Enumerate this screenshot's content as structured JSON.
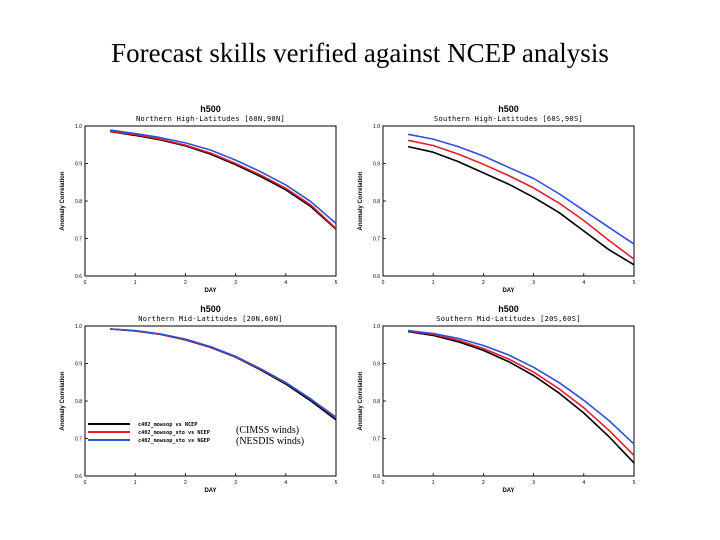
{
  "slide": {
    "title": "Forecast skills verified against NCEP analysis",
    "annotations": [
      "(CIMSS winds)",
      "(NESDIS winds)"
    ]
  },
  "colors": {
    "black": "#000000",
    "red": "#e0202a",
    "blue": "#3050d8"
  },
  "chart_data": [
    {
      "type": "line",
      "title": "h500",
      "subtitle": "Northern High-Latitudes [60N,90N]",
      "xlabel": "DAY",
      "ylabel": "Anomaly Correlation",
      "xlim": [
        0,
        5
      ],
      "ylim": [
        0.6,
        1.0
      ],
      "xticks": [
        0,
        1,
        2,
        3,
        4,
        5
      ],
      "yticks": [
        0.6,
        0.7,
        0.8,
        0.9,
        1.0
      ],
      "x": [
        0.5,
        1,
        1.5,
        2,
        2.5,
        3,
        3.5,
        4,
        4.5,
        5
      ],
      "series": [
        {
          "name": "c402_mowsop vs NCEP",
          "color": "#000000",
          "values": [
            0.985,
            0.975,
            0.963,
            0.947,
            0.925,
            0.897,
            0.865,
            0.83,
            0.785,
            0.725
          ]
        },
        {
          "name": "c402_mowsop_sto vs NCEP",
          "color": "#e0202a",
          "values": [
            0.986,
            0.977,
            0.965,
            0.949,
            0.928,
            0.9,
            0.869,
            0.834,
            0.789,
            0.727
          ]
        },
        {
          "name": "c402_mowsop_sto vs NGEP",
          "color": "#3050d8",
          "values": [
            0.989,
            0.98,
            0.969,
            0.955,
            0.936,
            0.909,
            0.878,
            0.843,
            0.798,
            0.74
          ]
        }
      ]
    },
    {
      "type": "line",
      "title": "h500",
      "subtitle": "Southern High-Latitudes [60S,90S]",
      "xlabel": "DAY",
      "ylabel": "Anomaly Correlation",
      "xlim": [
        0,
        5
      ],
      "ylim": [
        0.6,
        1.0
      ],
      "xticks": [
        0,
        1,
        2,
        3,
        4,
        5
      ],
      "yticks": [
        0.6,
        0.7,
        0.8,
        0.9,
        1.0
      ],
      "x": [
        0.5,
        1,
        1.5,
        2,
        2.5,
        3,
        3.5,
        4,
        4.5,
        5
      ],
      "series": [
        {
          "name": "c402_mowsop vs NCEP",
          "color": "#000000",
          "values": [
            0.945,
            0.93,
            0.905,
            0.875,
            0.845,
            0.81,
            0.77,
            0.72,
            0.67,
            0.63
          ]
        },
        {
          "name": "c402_mowsop_sto vs NCEP",
          "color": "#e0202a",
          "values": [
            0.962,
            0.948,
            0.925,
            0.898,
            0.868,
            0.835,
            0.795,
            0.748,
            0.695,
            0.645
          ]
        },
        {
          "name": "c402_mowsop_sto vs NGEP",
          "color": "#3050d8",
          "values": [
            0.978,
            0.965,
            0.945,
            0.92,
            0.89,
            0.86,
            0.82,
            0.775,
            0.73,
            0.685
          ]
        }
      ]
    },
    {
      "type": "line",
      "title": "h500",
      "subtitle": "Northern Mid-Latitudes [20N,60N]",
      "xlabel": "DAY",
      "ylabel": "Anomaly Correlation",
      "xlim": [
        0,
        5
      ],
      "ylim": [
        0.6,
        1.0
      ],
      "xticks": [
        0,
        1,
        2,
        3,
        4,
        5
      ],
      "yticks": [
        0.6,
        0.7,
        0.8,
        0.9,
        1.0
      ],
      "x": [
        0.5,
        1,
        1.5,
        2,
        2.5,
        3,
        3.5,
        4,
        4.5,
        5
      ],
      "series": [
        {
          "name": "c402_mowsop vs NCEP",
          "color": "#000000",
          "values": [
            0.992,
            0.987,
            0.978,
            0.963,
            0.943,
            0.917,
            0.883,
            0.845,
            0.8,
            0.75
          ]
        },
        {
          "name": "c402_mowsop_sto vs NCEP",
          "color": "#e0202a",
          "values": [
            0.992,
            0.987,
            0.978,
            0.964,
            0.944,
            0.918,
            0.885,
            0.848,
            0.805,
            0.757
          ]
        },
        {
          "name": "c402_mowsop_sto vs NGEP",
          "color": "#3050d8",
          "values": [
            0.992,
            0.988,
            0.979,
            0.965,
            0.945,
            0.919,
            0.886,
            0.849,
            0.805,
            0.755
          ]
        }
      ]
    },
    {
      "type": "line",
      "title": "h500",
      "subtitle": "Southern Mid-Latitudes [20S,60S]",
      "xlabel": "DAY",
      "ylabel": "Anomaly Correlation",
      "xlim": [
        0,
        5
      ],
      "ylim": [
        0.6,
        1.0
      ],
      "xticks": [
        0,
        1,
        2,
        3,
        4,
        5
      ],
      "yticks": [
        0.6,
        0.7,
        0.8,
        0.9,
        1.0
      ],
      "x": [
        0.5,
        1,
        1.5,
        2,
        2.5,
        3,
        3.5,
        4,
        4.5,
        5
      ],
      "series": [
        {
          "name": "c402_mowsop vs NCEP",
          "color": "#000000",
          "values": [
            0.985,
            0.975,
            0.958,
            0.935,
            0.905,
            0.868,
            0.822,
            0.768,
            0.705,
            0.635
          ]
        },
        {
          "name": "c402_mowsop_sto vs NCEP",
          "color": "#e0202a",
          "values": [
            0.987,
            0.978,
            0.962,
            0.94,
            0.912,
            0.877,
            0.833,
            0.782,
            0.722,
            0.655
          ]
        },
        {
          "name": "c402_mowsop_sto vs NGEP",
          "color": "#3050d8",
          "values": [
            0.988,
            0.98,
            0.967,
            0.948,
            0.923,
            0.89,
            0.85,
            0.802,
            0.748,
            0.685
          ]
        }
      ]
    }
  ]
}
